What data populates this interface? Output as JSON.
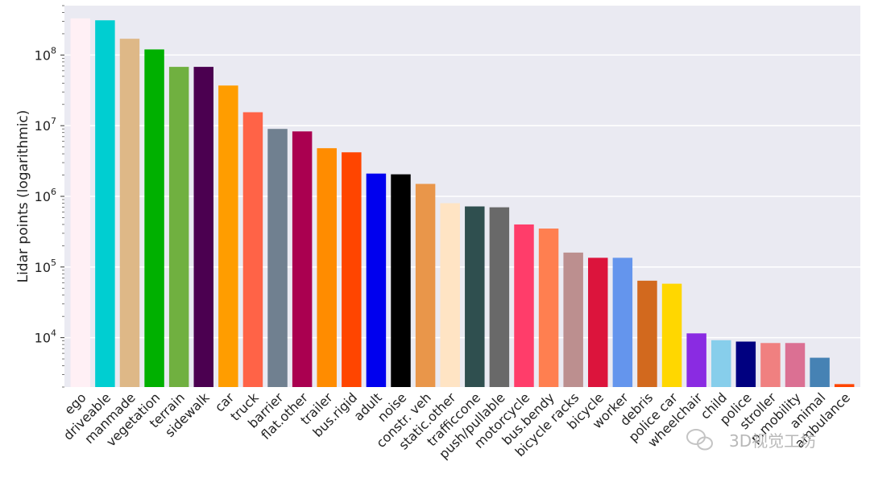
{
  "chart_data": {
    "type": "bar",
    "ylabel": "Lidar points (logarithmic)",
    "yscale": "log",
    "ylim": [
      2000,
      500000000
    ],
    "grid": true,
    "categories": [
      "ego",
      "driveable",
      "manmade",
      "vegetation",
      "terrain",
      "sidewalk",
      "car",
      "truck",
      "barrier",
      "flat.other",
      "trailer",
      "bus.rigid",
      "adult",
      "noise",
      "constr. veh",
      "static.other",
      "trafficcone",
      "push/pullable",
      "motorcycle",
      "bus.bendy",
      "bicycle racks",
      "bicycle",
      "worker",
      "debris",
      "police car",
      "wheelchair",
      "child",
      "police",
      "stroller",
      "p.mobility",
      "animal",
      "ambulance"
    ],
    "values": [
      330000000,
      310000000,
      170000000,
      120000000,
      68000000,
      68000000,
      37000000,
      15500000,
      9000000,
      8300000,
      4800000,
      4200000,
      2100000,
      2050000,
      1500000,
      800000,
      720000,
      700000,
      400000,
      350000,
      160000,
      135000,
      135000,
      64000,
      58000,
      11500,
      9200,
      8800,
      8400,
      8400,
      5200,
      2200
    ],
    "colors": [
      "#fff0f5",
      "#00ced1",
      "#deb887",
      "#00b000",
      "#70b040",
      "#4b0050",
      "#ff9d00",
      "#ff6347",
      "#708090",
      "#aa0050",
      "#ff8c00",
      "#ff4500",
      "#0000ee",
      "#000000",
      "#e9964a",
      "#ffe4c4",
      "#2f4f4f",
      "#696969",
      "#ff3d6a",
      "#ff7f50",
      "#bc8f8f",
      "#dc143c",
      "#6495ed",
      "#d2691e",
      "#ffd700",
      "#8a2be2",
      "#87ceeb",
      "#000080",
      "#f08080",
      "#db7093",
      "#4682b4",
      "#ff4500"
    ],
    "yticks": [
      {
        "value": 10000,
        "mantissa": "10",
        "exp": "4"
      },
      {
        "value": 100000,
        "mantissa": "10",
        "exp": "5"
      },
      {
        "value": 1000000,
        "mantissa": "10",
        "exp": "6"
      },
      {
        "value": 10000000,
        "mantissa": "10",
        "exp": "7"
      },
      {
        "value": 100000000,
        "mantissa": "10",
        "exp": "8"
      }
    ]
  },
  "watermark": {
    "text": "3D视觉工坊",
    "icon": "wechat-icon"
  }
}
